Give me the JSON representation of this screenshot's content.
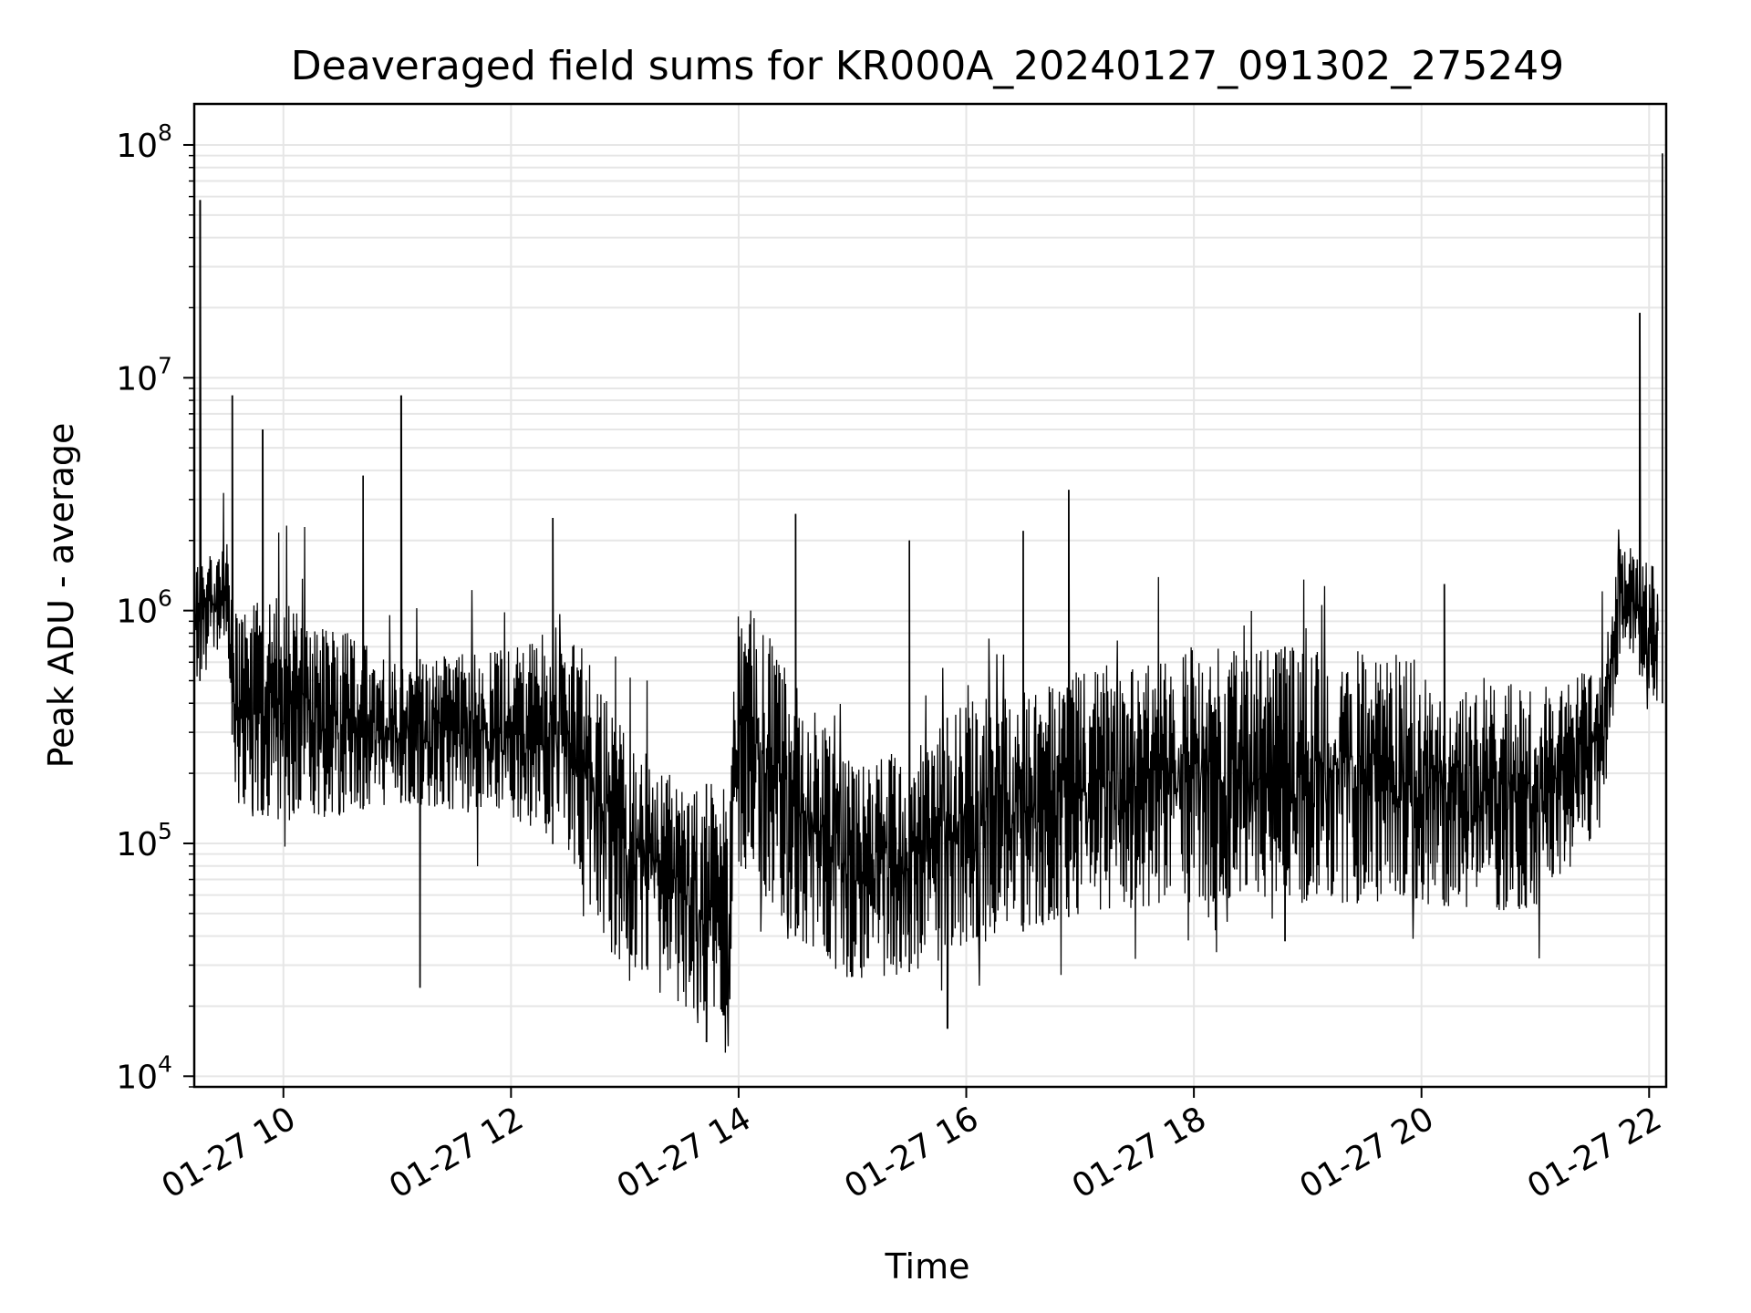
{
  "chart_data": {
    "type": "line",
    "title": "Deaveraged field sums for KR000A_20240127_091302_275249",
    "xlabel": "Time",
    "ylabel": "Peak ADU - average",
    "yscale": "log",
    "grid": true,
    "line_color": "#000000",
    "grid_color": "#e6e6e6",
    "xlim": [
      "2024-01-27 09:13",
      "2024-01-27 22:09"
    ],
    "ylim": [
      9000,
      150000000
    ],
    "x_ticks": [
      {
        "value": "2024-01-27 10:00",
        "label": "01-27 10"
      },
      {
        "value": "2024-01-27 12:00",
        "label": "01-27 12"
      },
      {
        "value": "2024-01-27 14:00",
        "label": "01-27 14"
      },
      {
        "value": "2024-01-27 16:00",
        "label": "01-27 16"
      },
      {
        "value": "2024-01-27 18:00",
        "label": "01-27 18"
      },
      {
        "value": "2024-01-27 20:00",
        "label": "01-27 20"
      },
      {
        "value": "2024-01-27 22:00",
        "label": "01-27 22"
      }
    ],
    "y_ticks": [
      {
        "value": 10000,
        "base": "10",
        "exp": "4"
      },
      {
        "value": 100000,
        "base": "10",
        "exp": "5"
      },
      {
        "value": 1000000,
        "base": "10",
        "exp": "6"
      },
      {
        "value": 10000000,
        "base": "10",
        "exp": "7"
      },
      {
        "value": 100000000,
        "base": "10",
        "exp": "8"
      }
    ],
    "series": [
      {
        "style": "dense-oscillating",
        "envelope": [
          {
            "x": "2024-01-27 09:13",
            "low": 450000,
            "high": 1600000
          },
          {
            "x": "2024-01-27 09:30",
            "low": 800000,
            "high": 2000000
          },
          {
            "x": "2024-01-27 09:35",
            "low": 150000,
            "high": 1000000
          },
          {
            "x": "2024-01-27 10:00",
            "low": 120000,
            "high": 1200000
          },
          {
            "x": "2024-01-27 11:00",
            "low": 150000,
            "high": 600000
          },
          {
            "x": "2024-01-27 12:00",
            "low": 130000,
            "high": 700000
          },
          {
            "x": "2024-01-27 12:30",
            "low": 90000,
            "high": 900000
          },
          {
            "x": "2024-01-27 13:00",
            "low": 25000,
            "high": 300000
          },
          {
            "x": "2024-01-27 13:30",
            "low": 20000,
            "high": 180000
          },
          {
            "x": "2024-01-27 13:55",
            "low": 18000,
            "high": 180000
          },
          {
            "x": "2024-01-27 14:00",
            "low": 80000,
            "high": 1300000
          },
          {
            "x": "2024-01-27 14:30",
            "low": 40000,
            "high": 500000
          },
          {
            "x": "2024-01-27 15:00",
            "low": 25000,
            "high": 220000
          },
          {
            "x": "2024-01-27 15:30",
            "low": 28000,
            "high": 260000
          },
          {
            "x": "2024-01-27 16:00",
            "low": 35000,
            "high": 400000
          },
          {
            "x": "2024-01-27 17:00",
            "low": 50000,
            "high": 550000
          },
          {
            "x": "2024-01-27 18:00",
            "low": 55000,
            "high": 700000
          },
          {
            "x": "2024-01-27 19:00",
            "low": 55000,
            "high": 700000
          },
          {
            "x": "2024-01-27 20:00",
            "low": 55000,
            "high": 650000
          },
          {
            "x": "2024-01-27 21:00",
            "low": 50000,
            "high": 450000
          },
          {
            "x": "2024-01-27 21:35",
            "low": 120000,
            "high": 600000
          },
          {
            "x": "2024-01-27 21:45",
            "low": 700000,
            "high": 2000000
          },
          {
            "x": "2024-01-27 22:05",
            "low": 400000,
            "high": 1500000
          }
        ],
        "spikes": [
          {
            "x": "2024-01-27 09:16",
            "y": 58000000
          },
          {
            "x": "2024-01-27 09:33",
            "y": 8400000
          },
          {
            "x": "2024-01-27 09:49",
            "y": 6000000
          },
          {
            "x": "2024-01-27 10:42",
            "y": 3800000
          },
          {
            "x": "2024-01-27 11:02",
            "y": 8400000
          },
          {
            "x": "2024-01-27 12:22",
            "y": 2500000
          },
          {
            "x": "2024-01-27 14:30",
            "y": 2600000
          },
          {
            "x": "2024-01-27 15:30",
            "y": 2000000
          },
          {
            "x": "2024-01-27 16:30",
            "y": 2200000
          },
          {
            "x": "2024-01-27 16:54",
            "y": 3300000
          },
          {
            "x": "2024-01-27 20:12",
            "y": 1300000
          },
          {
            "x": "2024-01-27 21:55",
            "y": 19000000
          },
          {
            "x": "2024-01-27 22:07",
            "y": 92000000
          }
        ],
        "dips": [
          {
            "x": "2024-01-27 11:12",
            "y": 24000
          },
          {
            "x": "2024-01-27 13:43",
            "y": 14000
          },
          {
            "x": "2024-01-27 15:50",
            "y": 16000
          },
          {
            "x": "2024-01-27 18:48",
            "y": 38000
          }
        ]
      }
    ]
  }
}
